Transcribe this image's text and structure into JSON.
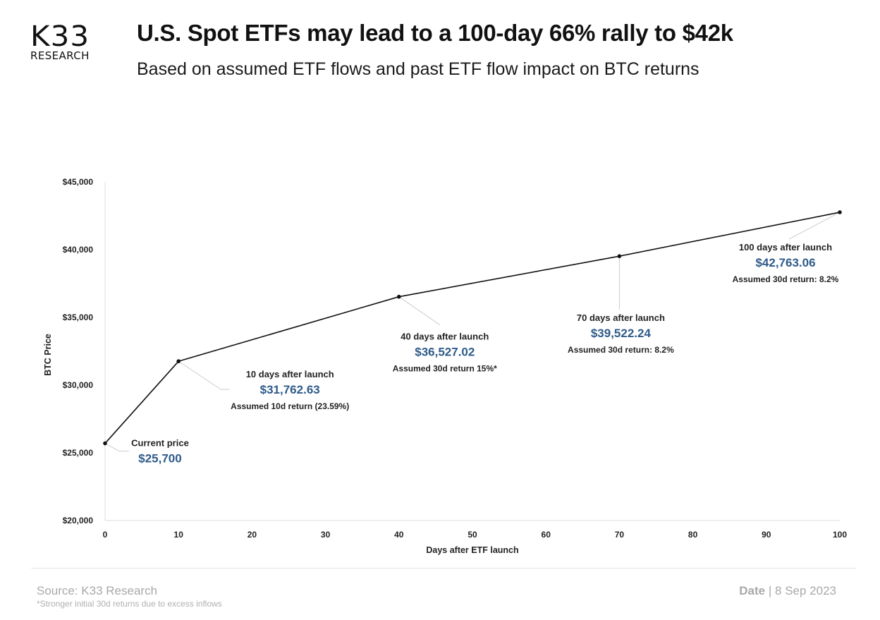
{
  "logo": {
    "main": "K33",
    "sub": "RESEARCH"
  },
  "header": {
    "title": "U.S. Spot ETFs may lead to a 100-day 66% rally to $42k",
    "subtitle": "Based on assumed ETF flows and past ETF flow impact on BTC returns"
  },
  "chart_data": {
    "type": "line",
    "title": "U.S. Spot ETFs may lead to a 100-day 66% rally to $42k",
    "subtitle": "Based on assumed ETF flows and past ETF flow impact on BTC returns",
    "xlabel": "Days after ETF launch",
    "ylabel": "BTC Price",
    "xlim": [
      0,
      100
    ],
    "ylim": [
      20000,
      45000
    ],
    "x_ticks": [
      0,
      10,
      20,
      30,
      40,
      50,
      60,
      70,
      80,
      90,
      100
    ],
    "y_ticks": [
      20000,
      25000,
      30000,
      35000,
      40000,
      45000
    ],
    "y_tick_labels": [
      "$20,000",
      "$25,000",
      "$30,000",
      "$35,000",
      "$40,000",
      "$45,000"
    ],
    "grid": false,
    "series": [
      {
        "name": "BTC Price",
        "x": [
          0,
          10,
          40,
          70,
          100
        ],
        "y": [
          25700,
          31762.63,
          36527.02,
          39522.24,
          42763.06
        ],
        "color": "#111111"
      }
    ],
    "annotations": [
      {
        "x": 0,
        "y": 25700,
        "heading": "Current price",
        "price": "$25,700",
        "note": ""
      },
      {
        "x": 10,
        "y": 31762.63,
        "heading": "10 days after launch",
        "price": "$31,762.63",
        "note": "Assumed 10d return (23.59%)"
      },
      {
        "x": 40,
        "y": 36527.02,
        "heading": "40 days after launch",
        "price": "$36,527.02",
        "note": "Assumed 30d return 15%*"
      },
      {
        "x": 70,
        "y": 39522.24,
        "heading": "70 days after launch",
        "price": "$39,522.24",
        "note": "Assumed 30d return: 8.2%"
      },
      {
        "x": 100,
        "y": 42763.06,
        "heading": "100 days after launch",
        "price": "$42,763.06",
        "note": "Assumed 30d return: 8.2%"
      }
    ],
    "colors": {
      "line": "#111111",
      "price_text": "#2e5b8a",
      "leader": "#c8cdd2",
      "axis": "#dcdfe3"
    }
  },
  "footer": {
    "source": "Source: K33 Research",
    "footnote": "*Stronger initial 30d returns due to excess inflows",
    "date_label": "Date",
    "date_separator": "|",
    "date_value": "8 Sep 2023"
  }
}
